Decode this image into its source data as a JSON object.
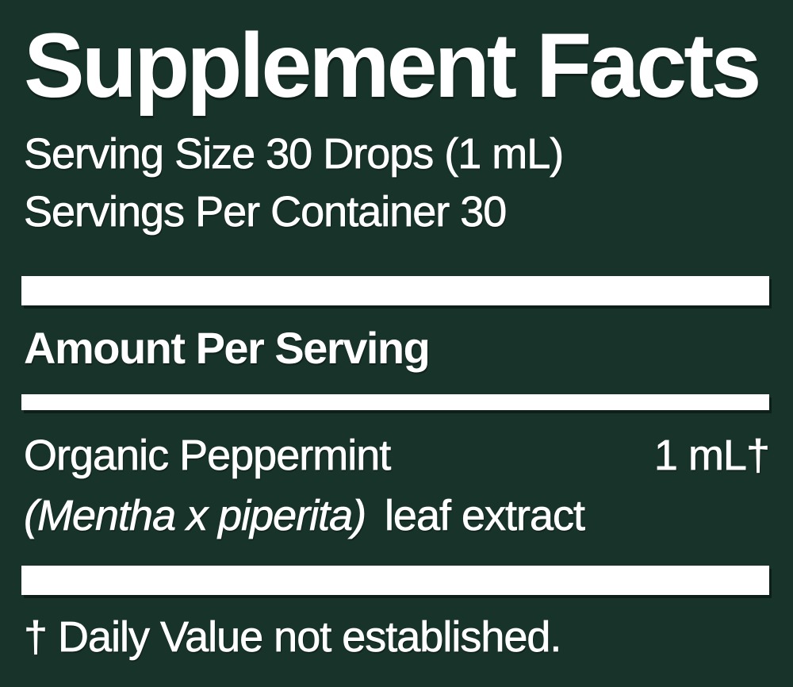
{
  "label": {
    "title": "Supplement Facts",
    "serving_size": "Serving Size 30 Drops (1 mL)",
    "servings_per_container": "Servings Per Container 30",
    "amount_per_serving_heading": "Amount Per Serving",
    "ingredient": {
      "name": "Organic Peppermint",
      "latin": "(Mentha x piperita)",
      "plant_part": "leaf extract",
      "amount": "1 mL†"
    },
    "footnote": "† Daily Value not established.",
    "colors": {
      "background": "#17332a",
      "text": "#ffffff",
      "divider_bar": "#ffffff"
    }
  }
}
